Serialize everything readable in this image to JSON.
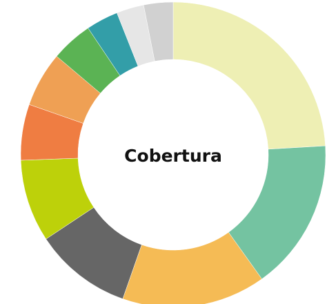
{
  "chart_data": {
    "type": "donut",
    "center_label": "Cobertura",
    "values": [
      24,
      16,
      15.2,
      10.3,
      8.7,
      5.9,
      5.8,
      4.4,
      3.4,
      2.9,
      3.1
    ],
    "colors": [
      "#eeefb4",
      "#74c3a1",
      "#f5bb55",
      "#666666",
      "#bdd10a",
      "#ef7d42",
      "#efa054",
      "#5bb354",
      "#339ea8",
      "#e6e6e6",
      "#d1d1d1"
    ]
  }
}
